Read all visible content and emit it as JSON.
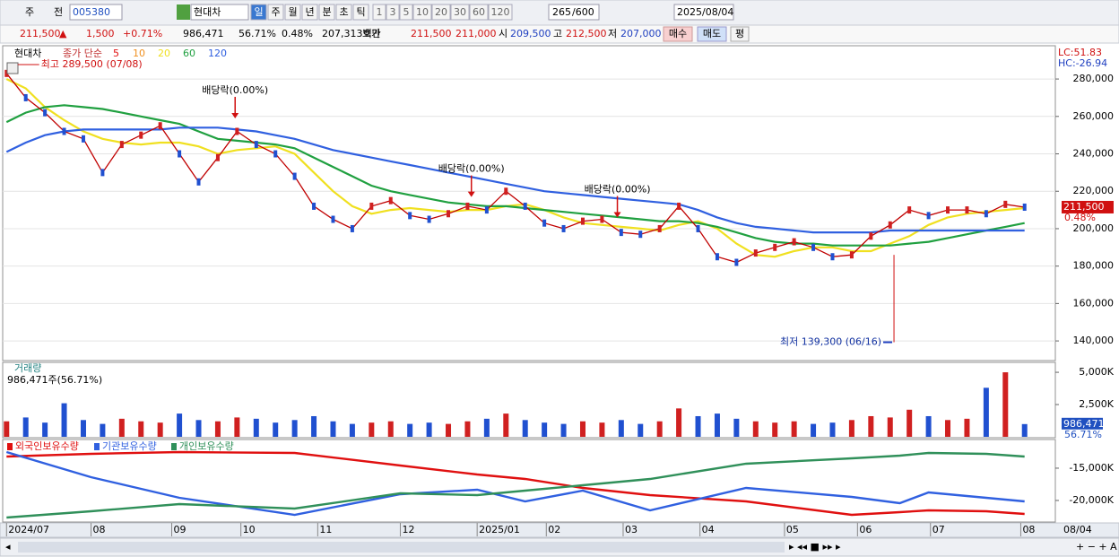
{
  "toolbar": {
    "items": [
      "주",
      "전"
    ],
    "code": "005380",
    "name": "현대차",
    "periods": [
      "일",
      "주",
      "월",
      "년",
      "분",
      "초",
      "틱"
    ],
    "intervals": [
      "1",
      "3",
      "5",
      "10",
      "20",
      "30",
      "60",
      "120"
    ],
    "count": "265",
    "max": "/600",
    "date": "2025/08/04"
  },
  "quote": {
    "price": "211,500",
    "arrow": "▲",
    "change": "1,500",
    "rate": "+0.71%",
    "volume": "986,471",
    "vol_rate": "56.71%",
    "rate2": "0.48%",
    "amount": "207,313백만",
    "ask_label": "호가",
    "ask": "211,500",
    "bid": "211,000",
    "open_label": "시",
    "open": "209,500",
    "high_label": "고",
    "high": "212,500",
    "low_label": "저",
    "low": "207,000",
    "buy": "매수",
    "sell": "매도",
    "avg": "평"
  },
  "chart_data": [
    {
      "type": "line",
      "title": "현대차",
      "legend_title": "종가 단순",
      "lc": "LC:51.83",
      "hc": "HC:-26.94",
      "xlim": [
        -0.2,
        54.6
      ],
      "ylim": [
        129500,
        297300
      ],
      "yticks": [
        {
          "value": 280000,
          "label": "280,000"
        },
        {
          "value": 260000,
          "label": "260,000"
        },
        {
          "value": 240000,
          "label": "240,000"
        },
        {
          "value": 220000,
          "label": "220,000"
        },
        {
          "value": 200000,
          "label": "200,000"
        },
        {
          "value": 180000,
          "label": "180,000"
        },
        {
          "value": 160000,
          "label": "160,000"
        },
        {
          "value": 140000,
          "label": "140,000"
        }
      ],
      "grid": true,
      "current": {
        "value": 211500,
        "label": "211,500"
      },
      "current_rate": "0.48%",
      "close": {
        "color": "#c00000",
        "values": [
          283000,
          270000,
          262000,
          252000,
          248000,
          230000,
          245000,
          250000,
          255000,
          240000,
          225000,
          238000,
          252000,
          245000,
          240000,
          228000,
          212000,
          205000,
          200000,
          212000,
          215000,
          207000,
          205000,
          208000,
          212000,
          210000,
          220000,
          212000,
          203000,
          200000,
          204000,
          205000,
          198000,
          197000,
          200000,
          212000,
          200000,
          185000,
          182000,
          187000,
          190000,
          193000,
          190000,
          185000,
          186000,
          196000,
          202000,
          210000,
          207000,
          210000,
          210000,
          208000,
          213000,
          211500
        ]
      },
      "series": [
        {
          "name": "5",
          "color": "#e01010"
        },
        {
          "name": "10",
          "color": "#f09020"
        },
        {
          "name": "20",
          "color": "#f0e020",
          "values": [
            280000,
            275000,
            265000,
            258000,
            252000,
            248000,
            246000,
            245000,
            246000,
            246000,
            244000,
            240000,
            242000,
            243000,
            244000,
            240000,
            230000,
            220000,
            212000,
            208000,
            210000,
            211000,
            210000,
            209000,
            210000,
            210000,
            212000,
            213000,
            210000,
            206000,
            203000,
            202000,
            201000,
            200000,
            199000,
            202000,
            204000,
            200000,
            192000,
            186000,
            185000,
            188000,
            190000,
            190000,
            188000,
            188000,
            192000,
            196000,
            202000,
            206000,
            208000,
            209000,
            210000,
            211000
          ]
        },
        {
          "name": "60",
          "color": "#20a040",
          "values": [
            257000,
            262000,
            265000,
            266000,
            265000,
            264000,
            262000,
            260000,
            258000,
            256000,
            252000,
            248000,
            247000,
            246000,
            245000,
            243000,
            238000,
            233000,
            228000,
            223000,
            220000,
            218000,
            216000,
            214000,
            213000,
            212000,
            212000,
            211000,
            210000,
            209000,
            208000,
            207000,
            206000,
            205000,
            204000,
            204000,
            203000,
            201000,
            198000,
            195000,
            193000,
            192000,
            192000,
            191000,
            191000,
            191000,
            191000,
            192000,
            193000,
            195000,
            197000,
            199000,
            201000,
            203000
          ]
        },
        {
          "name": "120",
          "color": "#3060e0",
          "values": [
            241000,
            246000,
            250000,
            252000,
            253000,
            253000,
            253000,
            253000,
            253000,
            254000,
            254000,
            254000,
            253000,
            252000,
            250000,
            248000,
            245000,
            242000,
            240000,
            238000,
            236000,
            234000,
            232000,
            230000,
            228000,
            226000,
            224000,
            222000,
            220000,
            219000,
            218000,
            217000,
            216000,
            215000,
            214000,
            213000,
            210000,
            206000,
            203000,
            201000,
            200000,
            199000,
            198000,
            198000,
            198000,
            198000,
            199000,
            199000,
            199000,
            199000,
            199000,
            199000,
            199000,
            199000
          ]
        }
      ],
      "annotations": [
        {
          "text": "최고 289,500 (07/08)",
          "x": 0.3,
          "y": 289500
        },
        {
          "text": "배당락(0.00%)",
          "x": 11.9,
          "y": 258000
        },
        {
          "text": "배당락(0.00%)",
          "x": 24.2,
          "y": 216000
        },
        {
          "text": "배당락(0.00%)",
          "x": 31.8,
          "y": 205000
        },
        {
          "text": "최저 139,300 (06/16)",
          "x": 46.2,
          "y": 139300
        }
      ]
    },
    {
      "type": "bar",
      "title": "거래량",
      "subtitle": "986,471주(56.71%)",
      "xlim": [
        -0.2,
        54.6
      ],
      "ylim": [
        0,
        5700000
      ],
      "yticks": [
        {
          "value": 5000000,
          "label": "5,000K"
        },
        {
          "value": 2500000,
          "label": "2,500K"
        }
      ],
      "up_color": "#d02020",
      "down_color": "#2050d0",
      "current": {
        "value": 986471,
        "label": "986,471"
      },
      "current_rate": "56.71%",
      "values": [
        1200000,
        1500000,
        1100000,
        2600000,
        1300000,
        1000000,
        1400000,
        1200000,
        1100000,
        1800000,
        1300000,
        1200000,
        1500000,
        1400000,
        1100000,
        1300000,
        1600000,
        1200000,
        1000000,
        1100000,
        1200000,
        1000000,
        1100000,
        1000000,
        1200000,
        1400000,
        1800000,
        1300000,
        1100000,
        1000000,
        1200000,
        1100000,
        1300000,
        1000000,
        1200000,
        2200000,
        1600000,
        1800000,
        1400000,
        1200000,
        1100000,
        1200000,
        1000000,
        1100000,
        1300000,
        1600000,
        1500000,
        2100000,
        1600000,
        1300000,
        1400000,
        3800000,
        5000000,
        986471
      ]
    },
    {
      "type": "line",
      "xlim": [
        -0.2,
        54.6
      ],
      "ylim": [
        -23200000,
        -10700000
      ],
      "yticks": [
        {
          "value": -15000000,
          "label": "-15,000K"
        },
        {
          "value": -20000000,
          "label": "-20,000K"
        }
      ],
      "x": [
        0,
        4.4,
        9,
        15,
        20.5,
        24.5,
        27,
        30,
        33.5,
        38.5,
        44,
        46.5,
        48,
        51,
        53
      ],
      "xticks": [
        {
          "value": 0,
          "label": "2024/07"
        },
        {
          "value": 4.4,
          "label": "08"
        },
        {
          "value": 8.6,
          "label": "09"
        },
        {
          "value": 12.2,
          "label": "10"
        },
        {
          "value": 16.2,
          "label": "11"
        },
        {
          "value": 20.5,
          "label": "12"
        },
        {
          "value": 24.5,
          "label": "2025/01"
        },
        {
          "value": 28.1,
          "label": "02"
        },
        {
          "value": 32.1,
          "label": "03"
        },
        {
          "value": 36.1,
          "label": "04"
        },
        {
          "value": 40.5,
          "label": "05"
        },
        {
          "value": 44.3,
          "label": "06"
        },
        {
          "value": 48.1,
          "label": "07"
        },
        {
          "value": 52.8,
          "label": "08"
        }
      ],
      "x_end_label": "08/04",
      "series": [
        {
          "name": "외국인보유수량",
          "color": "#e01010",
          "values": [
            -13194000,
            -12778000,
            -12500000,
            -12639000,
            -14583000,
            -15972000,
            -16667000,
            -18056000,
            -19167000,
            -20139000,
            -22222000,
            -21806000,
            -21528000,
            -21667000,
            -22083000
          ]
        },
        {
          "name": "기관보유수량",
          "color": "#3060e0",
          "values": [
            -12500000,
            -16389000,
            -19583000,
            -22222000,
            -19028000,
            -18333000,
            -20139000,
            -18472000,
            -21528000,
            -18056000,
            -19444000,
            -20417000,
            -18750000,
            -19583000,
            -20139000
          ]
        },
        {
          "name": "개인보유수량",
          "color": "#30905a",
          "values": [
            -22639000,
            -21667000,
            -20556000,
            -21250000,
            -18889000,
            -19167000,
            -18472000,
            -17639000,
            -16667000,
            -14306000,
            -13472000,
            -13056000,
            -12639000,
            -12778000,
            -13194000
          ]
        }
      ]
    }
  ]
}
